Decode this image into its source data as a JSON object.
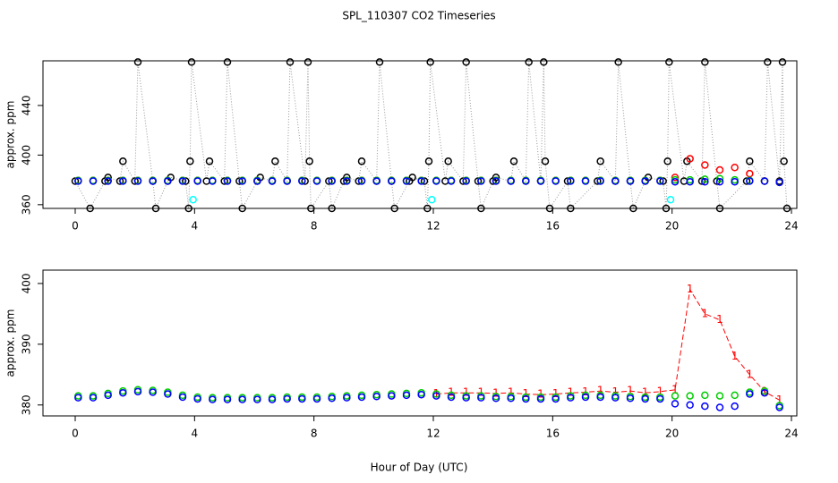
{
  "title": "SPL_110307  CO2 Timeseries",
  "xlabel": "Hour of Day (UTC)",
  "chart_data": [
    {
      "type": "scatter",
      "ylabel": "approx. ppm",
      "xlim": [
        -1.08,
        24.18
      ],
      "xticks": [
        0,
        4,
        8,
        12,
        16,
        20,
        24
      ],
      "ylim": [
        357,
        476
      ],
      "yticks": [
        360,
        400,
        440
      ],
      "x": [
        0.1,
        0.6,
        1.1,
        1.6,
        2.1,
        2.6,
        3.1,
        3.6,
        4.1,
        4.6,
        5.1,
        5.6,
        6.1,
        6.6,
        7.1,
        7.6,
        8.1,
        8.6,
        9.1,
        9.6,
        10.1,
        10.6,
        11.1,
        11.6,
        12.1,
        12.6,
        13.1,
        13.6,
        14.1,
        14.6,
        15.1,
        15.6,
        16.1,
        16.6,
        17.1,
        17.6,
        18.1,
        18.6,
        19.1,
        19.6,
        20.1,
        20.6,
        21.1,
        21.6,
        22.1,
        22.6,
        23.1,
        23.6
      ],
      "series": [
        {
          "color": "#000000",
          "marker": "circle",
          "line": "dotted",
          "x": [
            0,
            0.5,
            1.0,
            1.1,
            1.5,
            1.6,
            2.0,
            2.1,
            2.6,
            2.7,
            3.1,
            3.2,
            3.7,
            3.8,
            3.85,
            3.9,
            4.4,
            4.5,
            5.0,
            5.1,
            5.5,
            5.6,
            6.1,
            6.2,
            6.6,
            6.7,
            7.1,
            7.2,
            7.7,
            7.8,
            7.85,
            7.9,
            8.5,
            8.6,
            9.0,
            9.1,
            9.5,
            9.6,
            10.1,
            10.2,
            10.6,
            10.7,
            11.2,
            11.3,
            11.7,
            11.8,
            11.85,
            11.9,
            12.4,
            12.5,
            13.0,
            13.1,
            13.5,
            13.6,
            14.0,
            14.1,
            14.6,
            14.7,
            15.1,
            15.2,
            15.6,
            15.7,
            15.75,
            15.9,
            16.5,
            16.6,
            17.5,
            17.6,
            18.1,
            18.2,
            18.6,
            18.7,
            19.1,
            19.2,
            19.7,
            19.8,
            19.85,
            19.9,
            20.4,
            20.5,
            21.0,
            21.1,
            21.5,
            21.6,
            22.5,
            22.6,
            23.1,
            23.2,
            23.6,
            23.7,
            23.75,
            23.85
          ],
          "values": [
            379,
            357,
            379,
            382,
            379,
            395,
            379,
            475,
            379,
            357,
            379,
            382,
            379,
            357,
            395,
            475,
            379,
            395,
            379,
            475,
            379,
            357,
            379,
            382,
            379,
            395,
            379,
            475,
            379,
            475,
            395,
            357,
            379,
            357,
            379,
            382,
            379,
            395,
            379,
            475,
            379,
            357,
            379,
            382,
            379,
            357,
            395,
            475,
            379,
            395,
            379,
            475,
            379,
            357,
            379,
            382,
            379,
            395,
            379,
            475,
            379,
            475,
            395,
            357,
            379,
            357,
            379,
            395,
            379,
            475,
            379,
            357,
            379,
            382,
            379,
            357,
            395,
            475,
            379,
            395,
            379,
            475,
            379,
            357,
            379,
            395,
            379,
            475,
            379,
            475,
            395,
            357
          ]
        },
        {
          "color": "#ff0000",
          "marker": "circle",
          "values": [
            379.5,
            379.5,
            379.5,
            379.5,
            379.5,
            379.5,
            379.5,
            379.5,
            379.5,
            379.5,
            379.5,
            379.5,
            379.5,
            379.5,
            379.5,
            379.5,
            379.5,
            379.5,
            379.5,
            379.5,
            379.5,
            379.5,
            379.5,
            379.5,
            379.5,
            379.5,
            379.5,
            379.5,
            379.5,
            379.5,
            379.5,
            379.5,
            379.5,
            379.5,
            379.5,
            379.5,
            379.5,
            379.5,
            379.5,
            379.5,
            382,
            397,
            392,
            388,
            390,
            385,
            379,
            378
          ]
        },
        {
          "color": "#00cc00",
          "marker": "circle",
          "values": [
            379.5,
            379.5,
            379.5,
            379.5,
            379.5,
            379.5,
            379.5,
            379.5,
            379.5,
            379.5,
            379.5,
            379.5,
            379.5,
            379.5,
            379.5,
            379.5,
            379.5,
            379.5,
            379.5,
            379.5,
            379.5,
            379.5,
            379.5,
            379.5,
            379.5,
            379.5,
            379.5,
            379.5,
            379.5,
            379.5,
            379.5,
            379.5,
            379.5,
            379.5,
            379.5,
            379.5,
            379.5,
            379.5,
            379.5,
            379.5,
            380,
            380,
            380.5,
            381,
            380,
            379.5,
            379,
            378
          ]
        },
        {
          "color": "#0000ff",
          "marker": "circle",
          "values": [
            379,
            379,
            379,
            379,
            379,
            379,
            379,
            379,
            379,
            379,
            379,
            379,
            379,
            379,
            379,
            379,
            379,
            379,
            379,
            379,
            379,
            379,
            379,
            379,
            379,
            379,
            379,
            379,
            379,
            379,
            379,
            379,
            379,
            379,
            379,
            379,
            379,
            379,
            379,
            379,
            378.5,
            378.5,
            378.5,
            378.5,
            378.5,
            379,
            379,
            378
          ]
        },
        {
          "color": "#00ffff",
          "marker": "circle",
          "x": [
            3.95,
            11.95,
            19.95
          ],
          "values": [
            364,
            364,
            364
          ]
        }
      ]
    },
    {
      "type": "scatter",
      "ylabel": "approx. ppm",
      "xlim": [
        -1.08,
        24.18
      ],
      "xticks": [
        0,
        4,
        8,
        12,
        16,
        20,
        24
      ],
      "ylim": [
        378.2,
        402.2
      ],
      "yticks": [
        380,
        390,
        400
      ],
      "x": [
        0.1,
        0.6,
        1.1,
        1.6,
        2.1,
        2.6,
        3.1,
        3.6,
        4.1,
        4.6,
        5.1,
        5.6,
        6.1,
        6.6,
        7.1,
        7.6,
        8.1,
        8.6,
        9.1,
        9.6,
        10.1,
        10.6,
        11.1,
        11.6,
        12.1,
        12.6,
        13.1,
        13.6,
        14.1,
        14.6,
        15.1,
        15.6,
        16.1,
        16.6,
        17.1,
        17.6,
        18.1,
        18.6,
        19.1,
        19.6,
        20.1,
        20.6,
        21.1,
        21.6,
        22.1,
        22.6,
        23.1,
        23.6
      ],
      "series": [
        {
          "color": "#ff0000",
          "marker": "1",
          "line": "dashed",
          "values": [
            null,
            null,
            null,
            null,
            null,
            null,
            null,
            null,
            null,
            null,
            null,
            null,
            null,
            null,
            null,
            null,
            null,
            null,
            null,
            null,
            null,
            null,
            null,
            null,
            381.8,
            382,
            382,
            382,
            381.9,
            382,
            381.8,
            381.7,
            381.8,
            382,
            382.1,
            382.3,
            382.1,
            382.3,
            382,
            382.2,
            382.5,
            399,
            395,
            394,
            388,
            385,
            382.2,
            380.8
          ]
        },
        {
          "color": "#00cc00",
          "marker": "circle",
          "values": [
            381.5,
            381.5,
            381.9,
            382.3,
            382.5,
            382.4,
            382.1,
            381.6,
            381.3,
            381.2,
            381.2,
            381.2,
            381.2,
            381.2,
            381.3,
            381.3,
            381.3,
            381.4,
            381.5,
            381.6,
            381.7,
            381.8,
            381.9,
            382,
            381.8,
            381.6,
            381.5,
            381.5,
            381.4,
            381.4,
            381.3,
            381.3,
            381.3,
            381.5,
            381.6,
            381.6,
            381.5,
            381.4,
            381.3,
            381.3,
            381.5,
            381.5,
            381.6,
            381.5,
            381.6,
            382.1,
            382.3,
            379.9
          ]
        },
        {
          "color": "#0000ff",
          "marker": "circle",
          "values": [
            381.2,
            381.2,
            381.6,
            382,
            382.2,
            382.1,
            381.8,
            381.3,
            381,
            380.9,
            380.9,
            380.9,
            380.9,
            380.9,
            381,
            381,
            381,
            381.1,
            381.2,
            381.3,
            381.4,
            381.5,
            381.6,
            381.7,
            381.5,
            381.3,
            381.2,
            381.2,
            381.1,
            381.1,
            381,
            381,
            381,
            381.2,
            381.3,
            381.3,
            381.2,
            381.1,
            381,
            381,
            380.2,
            380,
            379.8,
            379.6,
            379.8,
            381.8,
            382,
            379.6
          ]
        }
      ]
    }
  ]
}
